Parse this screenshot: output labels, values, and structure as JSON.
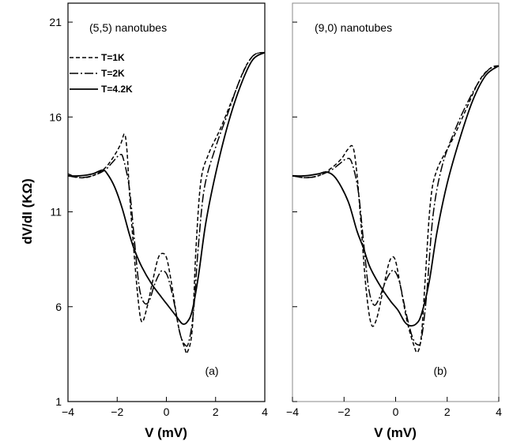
{
  "chart_data": [
    {
      "type": "line",
      "title": "(5,5) nanotubes",
      "panel_label": "(a)",
      "xlabel": "V (mV)",
      "ylabel": "dV/dI (KΩ)",
      "xlim": [
        -4,
        4
      ],
      "ylim": [
        1,
        22
      ],
      "xticks": [
        -4,
        -2,
        0,
        2,
        4
      ],
      "yticks": [
        1,
        6,
        11,
        16,
        21
      ],
      "grid": false,
      "legend_position": "top-left",
      "series": [
        {
          "name": "T=1K",
          "dash": "dashed",
          "points": [
            [
              -4.0,
              13.0
            ],
            [
              -3.5,
              12.8
            ],
            [
              -3.0,
              12.9
            ],
            [
              -2.5,
              13.3
            ],
            [
              -2.1,
              14.0
            ],
            [
              -1.85,
              14.6
            ],
            [
              -1.7,
              15.1
            ],
            [
              -1.6,
              14.2
            ],
            [
              -1.5,
              12.0
            ],
            [
              -1.35,
              9.4
            ],
            [
              -1.15,
              6.4
            ],
            [
              -1.0,
              5.2
            ],
            [
              -0.8,
              5.9
            ],
            [
              -0.55,
              7.4
            ],
            [
              -0.35,
              8.5
            ],
            [
              -0.2,
              8.8
            ],
            [
              0.0,
              8.6
            ],
            [
              0.2,
              7.3
            ],
            [
              0.5,
              4.9
            ],
            [
              0.75,
              3.8
            ],
            [
              0.85,
              3.6
            ],
            [
              1.05,
              4.8
            ],
            [
              1.2,
              9.0
            ],
            [
              1.4,
              12.6
            ],
            [
              1.7,
              14.0
            ],
            [
              2.2,
              15.4
            ],
            [
              2.7,
              17.0
            ],
            [
              3.2,
              18.6
            ],
            [
              3.6,
              19.3
            ],
            [
              4.0,
              19.4
            ]
          ]
        },
        {
          "name": "T=2K",
          "dash": "long-dash",
          "points": [
            [
              -4.0,
              12.9
            ],
            [
              -3.5,
              12.8
            ],
            [
              -3.0,
              12.9
            ],
            [
              -2.5,
              13.2
            ],
            [
              -2.2,
              13.6
            ],
            [
              -1.9,
              14.0
            ],
            [
              -1.75,
              13.8
            ],
            [
              -1.5,
              12.2
            ],
            [
              -1.3,
              9.5
            ],
            [
              -1.1,
              7.0
            ],
            [
              -0.9,
              6.2
            ],
            [
              -0.7,
              6.3
            ],
            [
              -0.5,
              7.1
            ],
            [
              -0.3,
              7.7
            ],
            [
              -0.15,
              7.9
            ],
            [
              0.05,
              7.6
            ],
            [
              0.3,
              6.3
            ],
            [
              0.55,
              4.6
            ],
            [
              0.75,
              4.0
            ],
            [
              0.9,
              4.1
            ],
            [
              1.1,
              5.7
            ],
            [
              1.3,
              9.2
            ],
            [
              1.55,
              12.3
            ],
            [
              2.0,
              14.4
            ],
            [
              2.5,
              16.2
            ],
            [
              3.0,
              18.0
            ],
            [
              3.5,
              19.2
            ],
            [
              4.0,
              19.4
            ]
          ]
        },
        {
          "name": "T=4.2K",
          "dash": "solid",
          "points": [
            [
              -4.0,
              12.9
            ],
            [
              -3.5,
              12.9
            ],
            [
              -3.0,
              13.0
            ],
            [
              -2.6,
              13.2
            ],
            [
              -2.4,
              13.0
            ],
            [
              -2.1,
              12.3
            ],
            [
              -1.8,
              11.2
            ],
            [
              -1.5,
              9.8
            ],
            [
              -1.3,
              9.0
            ],
            [
              -1.0,
              8.1
            ],
            [
              -0.6,
              7.2
            ],
            [
              -0.2,
              6.5
            ],
            [
              0.1,
              6.0
            ],
            [
              0.4,
              5.5
            ],
            [
              0.65,
              5.1
            ],
            [
              0.85,
              5.2
            ],
            [
              1.05,
              5.8
            ],
            [
              1.3,
              7.6
            ],
            [
              1.6,
              10.4
            ],
            [
              2.0,
              13.0
            ],
            [
              2.5,
              15.6
            ],
            [
              3.0,
              17.6
            ],
            [
              3.5,
              19.0
            ],
            [
              4.0,
              19.4
            ]
          ]
        }
      ]
    },
    {
      "type": "line",
      "title": "(9,0) nanotubes",
      "panel_label": "(b)",
      "xlabel": "V (mV)",
      "ylabel": "",
      "xlim": [
        -4,
        4
      ],
      "ylim": [
        1,
        22
      ],
      "xticks": [
        -4,
        -2,
        0,
        2,
        4
      ],
      "yticks": [
        1,
        6,
        11,
        16,
        21
      ],
      "grid": false,
      "series": [
        {
          "name": "T=1K",
          "dash": "dashed",
          "points": [
            [
              -4.0,
              12.9
            ],
            [
              -3.5,
              12.8
            ],
            [
              -3.0,
              12.9
            ],
            [
              -2.5,
              13.3
            ],
            [
              -2.1,
              13.8
            ],
            [
              -1.85,
              14.3
            ],
            [
              -1.65,
              14.4
            ],
            [
              -1.5,
              13.0
            ],
            [
              -1.35,
              10.5
            ],
            [
              -1.15,
              7.0
            ],
            [
              -0.95,
              5.1
            ],
            [
              -0.75,
              5.3
            ],
            [
              -0.5,
              6.8
            ],
            [
              -0.3,
              8.1
            ],
            [
              -0.15,
              8.6
            ],
            [
              0.0,
              8.4
            ],
            [
              0.2,
              7.0
            ],
            [
              0.45,
              5.2
            ],
            [
              0.7,
              4.0
            ],
            [
              0.85,
              3.6
            ],
            [
              1.0,
              4.5
            ],
            [
              1.15,
              7.5
            ],
            [
              1.35,
              11.5
            ],
            [
              1.6,
              13.2
            ],
            [
              2.2,
              14.8
            ],
            [
              2.7,
              16.3
            ],
            [
              3.2,
              17.8
            ],
            [
              3.6,
              18.5
            ],
            [
              4.0,
              18.7
            ]
          ]
        },
        {
          "name": "T=2K",
          "dash": "long-dash",
          "points": [
            [
              -4.0,
              12.9
            ],
            [
              -3.5,
              12.8
            ],
            [
              -3.0,
              12.9
            ],
            [
              -2.5,
              13.2
            ],
            [
              -2.2,
              13.5
            ],
            [
              -1.9,
              13.8
            ],
            [
              -1.7,
              13.6
            ],
            [
              -1.45,
              12.1
            ],
            [
              -1.25,
              9.5
            ],
            [
              -1.05,
              7.0
            ],
            [
              -0.85,
              6.1
            ],
            [
              -0.65,
              6.4
            ],
            [
              -0.4,
              7.3
            ],
            [
              -0.2,
              7.8
            ],
            [
              -0.05,
              7.9
            ],
            [
              0.15,
              7.3
            ],
            [
              0.4,
              5.7
            ],
            [
              0.65,
              4.4
            ],
            [
              0.85,
              4.0
            ],
            [
              1.0,
              4.3
            ],
            [
              1.2,
              6.6
            ],
            [
              1.45,
              10.8
            ],
            [
              1.8,
              13.4
            ],
            [
              2.3,
              15.3
            ],
            [
              2.8,
              16.8
            ],
            [
              3.3,
              18.0
            ],
            [
              3.7,
              18.6
            ],
            [
              4.0,
              18.7
            ]
          ]
        },
        {
          "name": "T=4.2K",
          "dash": "solid",
          "points": [
            [
              -4.0,
              12.9
            ],
            [
              -3.5,
              12.9
            ],
            [
              -3.0,
              13.0
            ],
            [
              -2.7,
              13.1
            ],
            [
              -2.4,
              12.9
            ],
            [
              -2.1,
              12.3
            ],
            [
              -1.8,
              11.4
            ],
            [
              -1.5,
              10.0
            ],
            [
              -1.25,
              9.1
            ],
            [
              -1.0,
              8.1
            ],
            [
              -0.6,
              7.1
            ],
            [
              -0.2,
              6.3
            ],
            [
              0.1,
              5.8
            ],
            [
              0.35,
              5.2
            ],
            [
              0.55,
              5.0
            ],
            [
              0.8,
              5.1
            ],
            [
              1.0,
              5.6
            ],
            [
              1.3,
              7.3
            ],
            [
              1.6,
              9.9
            ],
            [
              2.0,
              12.5
            ],
            [
              2.5,
              14.9
            ],
            [
              3.0,
              16.9
            ],
            [
              3.5,
              18.2
            ],
            [
              4.0,
              18.7
            ]
          ]
        }
      ]
    }
  ]
}
